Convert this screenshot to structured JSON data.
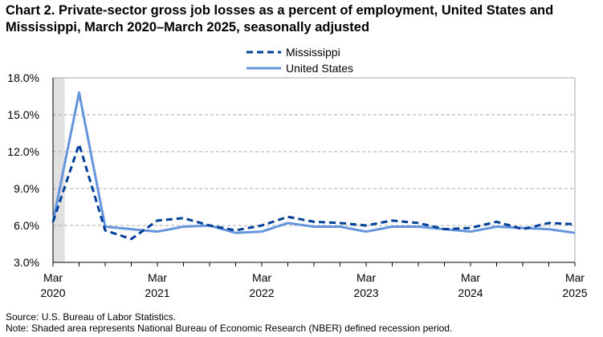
{
  "chart_data": {
    "type": "line",
    "title": "Chart 2. Private-sector gross job losses as a percent of employment, United States and Mississippi, March 2020–March 2025, seasonally adjusted",
    "x": [
      "Mar 2020",
      "Jun 2020",
      "Sep 2020",
      "Dec 2020",
      "Mar 2021",
      "Jun 2021",
      "Sep 2021",
      "Dec 2021",
      "Mar 2022",
      "Jun 2022",
      "Sep 2022",
      "Dec 2022",
      "Mar 2023",
      "Jun 2023",
      "Sep 2023",
      "Dec 2023",
      "Mar 2024",
      "Jun 2024",
      "Sep 2024",
      "Dec 2024",
      "Mar 2025"
    ],
    "x_tick_labels": [
      [
        "Mar",
        "2020"
      ],
      [
        "Mar",
        "2021"
      ],
      [
        "Mar",
        "2022"
      ],
      [
        "Mar",
        "2023"
      ],
      [
        "Mar",
        "2024"
      ],
      [
        "Mar",
        "2025"
      ]
    ],
    "y_tick_labels": [
      "3.0%",
      "6.0%",
      "9.0%",
      "12.0%",
      "15.0%",
      "18.0%"
    ],
    "ylim": [
      3,
      18
    ],
    "grid": true,
    "legend_placement": "top-center",
    "series": [
      {
        "name": "Mississippi",
        "style": "dashed",
        "color": "#003F9A",
        "values": [
          6.3,
          12.6,
          5.6,
          4.9,
          6.4,
          6.6,
          6.0,
          5.6,
          6.0,
          6.7,
          6.3,
          6.2,
          6.0,
          6.4,
          6.2,
          5.7,
          5.8,
          6.3,
          5.7,
          6.2,
          6.1
        ]
      },
      {
        "name": "United States",
        "style": "solid",
        "color": "#6495DC",
        "values": [
          6.3,
          16.8,
          5.9,
          5.7,
          5.5,
          5.9,
          6.0,
          5.4,
          5.5,
          6.2,
          5.9,
          5.9,
          5.5,
          5.9,
          5.9,
          5.7,
          5.5,
          5.9,
          5.8,
          5.7,
          5.4
        ]
      }
    ],
    "recession_shading": {
      "start": "Mar 2020",
      "end": "Apr 2020",
      "color": "#E0E0E0"
    }
  },
  "source": "Source: U.S. Bureau of Labor Statistics.",
  "note": "Note: Shaded area represents National Bureau of Economic Research (NBER) defined  recession period."
}
